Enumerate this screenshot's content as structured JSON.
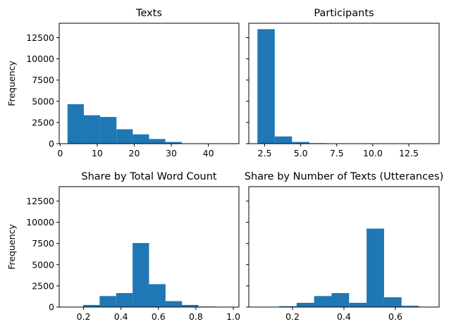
{
  "chart_data": [
    {
      "type": "bar",
      "title": "Texts",
      "ylabel": "Frequency",
      "xlim": [
        -0.25,
        48.25
      ],
      "ylim": [
        0,
        14200
      ],
      "xticks": [
        0,
        10,
        20,
        30,
        40
      ],
      "xtick_labels": [
        "0",
        "10",
        "20",
        "30",
        "40"
      ],
      "yticks": [
        0,
        2500,
        5000,
        7500,
        10000,
        12500
      ],
      "ytick_labels": [
        "0",
        "2500",
        "5000",
        "7500",
        "10000",
        "12500"
      ],
      "show_ytick_labels": true,
      "bar_color": "#1f77b4",
      "bins": [
        {
          "x0": 2.0,
          "x1": 6.4,
          "value": 4650
        },
        {
          "x0": 6.4,
          "x1": 10.8,
          "value": 3350
        },
        {
          "x0": 10.8,
          "x1": 15.2,
          "value": 3150
        },
        {
          "x0": 15.2,
          "x1": 19.6,
          "value": 1700
        },
        {
          "x0": 19.6,
          "x1": 24.0,
          "value": 1100
        },
        {
          "x0": 24.0,
          "x1": 28.4,
          "value": 550
        },
        {
          "x0": 28.4,
          "x1": 32.8,
          "value": 200
        },
        {
          "x0": 32.8,
          "x1": 37.2,
          "value": 40
        },
        {
          "x0": 37.2,
          "x1": 41.6,
          "value": 15
        },
        {
          "x0": 41.6,
          "x1": 46.0,
          "value": 5
        }
      ]
    },
    {
      "type": "bar",
      "title": "Participants",
      "ylabel": "",
      "xlim": [
        1.4,
        14.6
      ],
      "ylim": [
        0,
        14200
      ],
      "xticks": [
        2.5,
        5.0,
        7.5,
        10.0,
        12.5
      ],
      "xtick_labels": [
        "2.5",
        "5.0",
        "7.5",
        "10.0",
        "12.5"
      ],
      "yticks": [
        0,
        2500,
        5000,
        7500,
        10000,
        12500
      ],
      "ytick_labels": [
        "0",
        "2500",
        "5000",
        "7500",
        "10000",
        "12500"
      ],
      "show_ytick_labels": false,
      "bar_color": "#1f77b4",
      "bins": [
        {
          "x0": 2.0,
          "x1": 3.2,
          "value": 13500
        },
        {
          "x0": 3.2,
          "x1": 4.4,
          "value": 850
        },
        {
          "x0": 4.4,
          "x1": 5.6,
          "value": 200
        },
        {
          "x0": 5.6,
          "x1": 6.8,
          "value": 60
        },
        {
          "x0": 6.8,
          "x1": 8.0,
          "value": 30
        },
        {
          "x0": 8.0,
          "x1": 9.2,
          "value": 15
        },
        {
          "x0": 9.2,
          "x1": 10.4,
          "value": 5
        },
        {
          "x0": 10.4,
          "x1": 11.6,
          "value": 3
        },
        {
          "x0": 11.6,
          "x1": 12.8,
          "value": 2
        },
        {
          "x0": 12.8,
          "x1": 14.0,
          "value": 1
        }
      ]
    },
    {
      "type": "bar",
      "title": "Share by Total Word Count",
      "ylabel": "Frequency",
      "xlim": [
        0.07,
        1.03
      ],
      "ylim": [
        0,
        14200
      ],
      "xticks": [
        0.2,
        0.4,
        0.6,
        0.8,
        1.0
      ],
      "xtick_labels": [
        "0.2",
        "0.4",
        "0.6",
        "0.8",
        "1.0"
      ],
      "yticks": [
        0,
        2500,
        5000,
        7500,
        10000,
        12500
      ],
      "ytick_labels": [
        "0",
        "2500",
        "5000",
        "7500",
        "10000",
        "12500"
      ],
      "show_ytick_labels": true,
      "bar_color": "#1f77b4",
      "bins": [
        {
          "x0": 0.11,
          "x1": 0.198,
          "value": 30
        },
        {
          "x0": 0.198,
          "x1": 0.286,
          "value": 250
        },
        {
          "x0": 0.286,
          "x1": 0.374,
          "value": 1300
        },
        {
          "x0": 0.374,
          "x1": 0.462,
          "value": 1650
        },
        {
          "x0": 0.462,
          "x1": 0.55,
          "value": 7550
        },
        {
          "x0": 0.55,
          "x1": 0.638,
          "value": 2700
        },
        {
          "x0": 0.638,
          "x1": 0.726,
          "value": 700
        },
        {
          "x0": 0.726,
          "x1": 0.814,
          "value": 250
        },
        {
          "x0": 0.814,
          "x1": 0.902,
          "value": 60
        },
        {
          "x0": 0.902,
          "x1": 0.99,
          "value": 10
        }
      ]
    },
    {
      "type": "bar",
      "title": "Share by Number of Texts (Utterances)",
      "ylabel": "",
      "xlim": [
        0.03,
        0.77
      ],
      "ylim": [
        0,
        14200
      ],
      "xticks": [
        0.2,
        0.4,
        0.6
      ],
      "xtick_labels": [
        "0.2",
        "0.4",
        "0.6"
      ],
      "yticks": [
        0,
        2500,
        5000,
        7500,
        10000,
        12500
      ],
      "ytick_labels": [
        "0",
        "2500",
        "5000",
        "7500",
        "10000",
        "12500"
      ],
      "show_ytick_labels": false,
      "bar_color": "#1f77b4",
      "bins": [
        {
          "x0": 0.08,
          "x1": 0.148,
          "value": 10
        },
        {
          "x0": 0.148,
          "x1": 0.216,
          "value": 100
        },
        {
          "x0": 0.216,
          "x1": 0.284,
          "value": 500
        },
        {
          "x0": 0.284,
          "x1": 0.352,
          "value": 1300
        },
        {
          "x0": 0.352,
          "x1": 0.42,
          "value": 1650
        },
        {
          "x0": 0.42,
          "x1": 0.488,
          "value": 500
        },
        {
          "x0": 0.488,
          "x1": 0.556,
          "value": 9250
        },
        {
          "x0": 0.556,
          "x1": 0.624,
          "value": 1150
        },
        {
          "x0": 0.624,
          "x1": 0.692,
          "value": 150
        },
        {
          "x0": 0.692,
          "x1": 0.76,
          "value": 10
        }
      ]
    }
  ]
}
